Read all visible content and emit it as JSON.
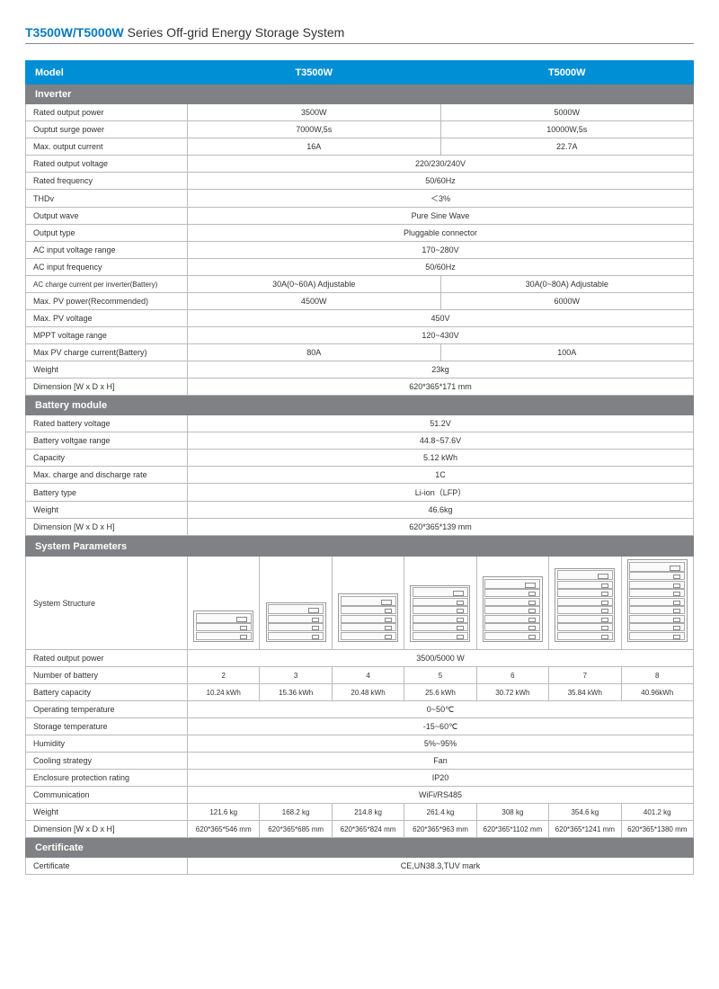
{
  "title": {
    "bold": "T3500W/T5000W",
    "rest": " Series Off-grid Energy Storage System"
  },
  "header": {
    "model": "Model",
    "col1": "T3500W",
    "col2": "T5000W"
  },
  "sections": {
    "inverter": "Inverter",
    "battery": "Battery module",
    "system": "System Parameters",
    "cert": "Certificate"
  },
  "inverter_rows": [
    {
      "label": "Rated output power",
      "a": "3500W",
      "b": "5000W"
    },
    {
      "label": "Ouptut surge power",
      "a": "7000W,5s",
      "b": "10000W,5s"
    },
    {
      "label": "Max. output current",
      "a": "16A",
      "b": "22.7A"
    },
    {
      "label": "Rated output voltage",
      "span": "220/230/240V"
    },
    {
      "label": "Rated frequency",
      "span": "50/60Hz"
    },
    {
      "label": "THDv",
      "span": "＜3%"
    },
    {
      "label": "Output wave",
      "span": "Pure Sine Wave"
    },
    {
      "label": "Output type",
      "span": "Pluggable connector"
    },
    {
      "label": "AC input voltage range",
      "span": "170~280V"
    },
    {
      "label": "AC input frequency",
      "span": "50/60Hz"
    },
    {
      "label": "AC charge current per inverter(Battery)",
      "a": "30A(0~60A) Adjustable",
      "b": "30A(0~80A) Adjustable",
      "small": true
    },
    {
      "label": "Max. PV power(Recommended)",
      "a": "4500W",
      "b": "6000W"
    },
    {
      "label": "Max. PV voltage",
      "span": "450V"
    },
    {
      "label": "MPPT voltage range",
      "span": "120~430V"
    },
    {
      "label": "Max PV charge current(Battery)",
      "a": "80A",
      "b": "100A"
    },
    {
      "label": "Weight",
      "span": "23kg"
    },
    {
      "label": "Dimension [W x D x H]",
      "span": "620*365*171 mm"
    }
  ],
  "battery_rows": [
    {
      "label": "Rated battery voltage",
      "span": "51.2V"
    },
    {
      "label": "Battery voltgae range",
      "span": "44.8~57.6V"
    },
    {
      "label": "Capacity",
      "span": "5.12 kWh"
    },
    {
      "label": "Max. charge and discharge rate",
      "span": "1C"
    },
    {
      "label": "Battery type",
      "span": "Li-ion（LFP）"
    },
    {
      "label": "Weight",
      "span": "46.6kg"
    },
    {
      "label": "Dimension [W x D x H]",
      "span": "620*365*139 mm"
    }
  ],
  "system": {
    "structure_label": "System Structure",
    "stacks": [
      2,
      3,
      4,
      5,
      6,
      7,
      8
    ],
    "rows": [
      {
        "label": "Rated output power",
        "span": "3500/5000 W"
      },
      {
        "label": "Number of battery",
        "cells": [
          "2",
          "3",
          "4",
          "5",
          "6",
          "7",
          "8"
        ]
      },
      {
        "label": "Battery capacity",
        "cells": [
          "10.24 kWh",
          "15.36 kWh",
          "20.48 kWh",
          "25.6 kWh",
          "30.72 kWh",
          "35.84 kWh",
          "40.96kWh"
        ]
      },
      {
        "label": "Operating temperature",
        "span": "0~50℃"
      },
      {
        "label": "Storage temperature",
        "span": "-15~60℃"
      },
      {
        "label": "Humidity",
        "span": "5%~95%"
      },
      {
        "label": "Cooling strategy",
        "span": "Fan"
      },
      {
        "label": "Enclosure protection rating",
        "span": "IP20"
      },
      {
        "label": "Communication",
        "span": "WiFi/RS485"
      },
      {
        "label": "Weight",
        "cells": [
          "121.6 kg",
          "168.2 kg",
          "214.8  kg",
          "261.4  kg",
          "308 kg",
          "354.6 kg",
          "401.2 kg"
        ]
      },
      {
        "label": "Dimension [W x D x H]",
        "cells": [
          "620*365*546 mm",
          "620*365*685 mm",
          "620*365*824 mm",
          "620*365*963 mm",
          "620*365*1102 mm",
          "620*365*1241 mm",
          "620*365*1380 mm"
        ]
      }
    ]
  },
  "cert_rows": [
    {
      "label": "Certificate",
      "span": "CE,UN38.3,TUV mark"
    }
  ],
  "colors": {
    "blue": "#008fd5",
    "gray": "#808184",
    "border": "#bbbbbb",
    "title_blue": "#0a7abf"
  }
}
